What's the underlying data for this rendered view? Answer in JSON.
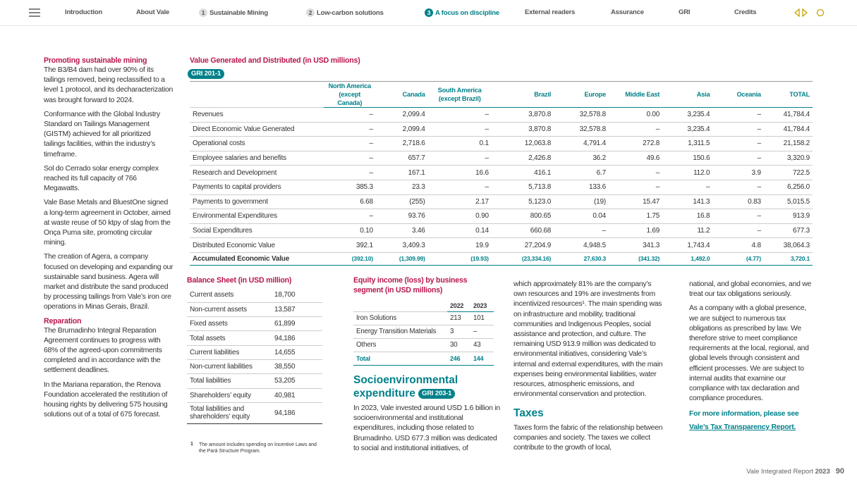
{
  "nav": {
    "items": [
      {
        "label": "Introduction"
      },
      {
        "label": "About Vale"
      },
      {
        "num": "1",
        "label": "Sustainable Mining"
      },
      {
        "num": "2",
        "label": "Low-carbon solutions"
      },
      {
        "num": "3",
        "label": "A focus on discipline"
      },
      {
        "label": "External readers"
      },
      {
        "label": "Assurance"
      },
      {
        "label": "GRI"
      },
      {
        "label": "Credits"
      }
    ]
  },
  "sidebar": {
    "sections": [
      {
        "heading": "Promoting sustainable mining",
        "paragraphs": [
          "The B3/B4 dam had over 90% of its tailings removed, being reclassified to a level 1 protocol, and its decharacterization was brought forward to 2024.",
          "Conformance with the Global Industry Standard on Tailings Management (GISTM) achieved for all prioritized tailings facilities, within the industry’s timeframe.",
          "Sol do Cerrado solar energy complex reached its full capacity of 766 Megawatts.",
          "Vale Base Metals and BluestOne signed a long-term agreement in October, aimed at waste reuse of 50 ktpy of slag from the Onça Puma site, promoting circular mining.",
          "The creation of Agera, a company focused on developing and expanding our sustainable sand business. Agera will market and distribute the sand produced by processing tailings from Vale’s iron ore operations in Minas Gerais, Brazil."
        ]
      },
      {
        "heading": "Reparation",
        "paragraphs": [
          "The Brumadinho Integral Reparation Agreement continues to progress with 68% of the agreed-upon commitments completed and in accordance with the settlement deadlines.",
          "In the Mariana reparation, the Renova Foundation accelerated the restitution of housing rights by delivering 575 housing solutions out of a total of 675 forecast."
        ]
      }
    ]
  },
  "value_table": {
    "title": "Value Generated and Distributed (in USD millions)",
    "badge": "GRI 201-1",
    "header": [
      "North America (except Canada)",
      "Canada",
      "South America (except Brazil)",
      "Brazil",
      "Europe",
      "Middle East",
      "Asia",
      "Oceania",
      "TOTAL"
    ],
    "rows": [
      [
        "Revenues",
        "–",
        "2,099.4",
        "–",
        "3,870.8",
        "32,578.8",
        "0.00",
        "3,235.4",
        "–",
        "41,784.4"
      ],
      [
        "Direct Economic Value Generated",
        "–",
        "2,099.4",
        "–",
        "3,870.8",
        "32,578.8",
        "–",
        "3,235.4",
        "–",
        "41,784.4"
      ],
      [
        "Operational costs",
        "–",
        "2,718.6",
        "0.1",
        "12,063.8",
        "4,791.4",
        "272.8",
        "1,311.5",
        "–",
        "21,158.2"
      ],
      [
        "Employee salaries and benefits",
        "–",
        "657.7",
        "–",
        "2,426.8",
        "36.2",
        "49.6",
        "150.6",
        "–",
        "3,320.9"
      ],
      [
        "Research and Development",
        "–",
        "167.1",
        "16.6",
        "416.1",
        "6.7",
        "–",
        "112.0",
        "3.9",
        "722.5"
      ],
      [
        "Payments to capital providers",
        "385.3",
        "23.3",
        "–",
        "5,713.8",
        "133.6",
        "–",
        "–",
        "–",
        "6,256.0"
      ],
      [
        "Payments to government",
        "6.68",
        "(255)",
        "2.17",
        "5,123.0",
        "(19)",
        "15.47",
        "141.3",
        "0.83",
        "5,015.5"
      ],
      [
        "Environmental Expenditures",
        "–",
        "93.76",
        "0.90",
        "800.65",
        "0.04",
        "1.75",
        "16.8",
        "–",
        "913.9"
      ],
      [
        "Social Expenditures",
        "0.10",
        "3.46",
        "0.14",
        "660.68",
        "–",
        "1.69",
        "11.2",
        "–",
        "677.3"
      ],
      [
        "Distributed Economic Value",
        "392.1",
        "3,409.3",
        "19.9",
        "27,204.9",
        "4,948.5",
        "341.3",
        "1,743.4",
        "4.8",
        "38,064.3"
      ]
    ],
    "total": [
      "Accumulated Economic Value",
      "(392.10)",
      "(1,309.99)",
      "(19.93)",
      "(23,334.16)",
      "27,630.3",
      "(341.32)",
      "1,492.0",
      "(4.77)",
      "3,720.1"
    ]
  },
  "balance_sheet": {
    "title": "Balance Sheet (in USD million)",
    "rows": [
      [
        "Current assets",
        "18,700"
      ],
      [
        "Non-current assets",
        "13,587"
      ],
      [
        "Fixed assets",
        "61,899"
      ],
      [
        "Total assets",
        "94,186"
      ],
      [
        "Current liabilities",
        "14,655"
      ],
      [
        "Non-current liabilities",
        "38,550"
      ],
      [
        "Total liabilities",
        "53,205"
      ],
      [
        "Shareholders’ equity",
        "40,981"
      ],
      [
        "Total liabilities and shareholders’ equity",
        "94,186"
      ]
    ]
  },
  "equity_table": {
    "title": "Equity income (loss) by business segment (in USD millions)",
    "header": [
      "2022",
      "2023"
    ],
    "rows": [
      [
        "Iron Solutions",
        "213",
        "101"
      ],
      [
        "Energy Transition Materials",
        "3",
        "–"
      ],
      [
        "Others",
        "30",
        "43"
      ]
    ],
    "total": [
      "Total",
      "246",
      "144"
    ]
  },
  "footnote": {
    "num": "1",
    "text": "The amount includes spending on Incentive Laws and the Pará Structure Program."
  },
  "socio": {
    "heading": "Socioenvironmental expenditure",
    "badge": "GRI 203-1",
    "paragraph": "In 2023, Vale invested around USD 1.6 billion in socioenvironmental and institutional expenditures, including those related to Brumadinho. USD 677.3 million was dedicated to social and institutional initiatives, of"
  },
  "column3": {
    "paragraph": "which approximately 81% are the company’s own resources and 19% are investments from incentivized resources¹. The main spending was on infrastructure and mobility, traditional communities and Indigenous Peoples, social assistance and protection, and culture. The remaining USD 913.9 million was dedicated to environmental initiatives, considering Vale’s internal and external expenditures, with the main expenses being environmental liabilities, water resources, atmospheric emissions, and environmental conservation and protection.",
    "taxes_heading": "Taxes",
    "taxes_paragraph": "Taxes form the fabric of the relationship between companies and society. The taxes we collect contribute to the growth of local,"
  },
  "column4": {
    "paragraphs": [
      "national, and global economies, and we treat our tax obligations seriously.",
      "As a company with a global presence, we are subject to numerous tax obligations as prescribed by law. We therefore strive to meet compliance requirements at the local, regional, and global levels through consistent and efficient processes. We are subject to internal audits that examine our compliance with tax declaration and compliance procedures."
    ],
    "more": "For more information, please see",
    "link": "Vale’s Tax Transparency Report."
  },
  "footer": {
    "report": "Vale Integrated Report",
    "year": "2023",
    "page": "90"
  }
}
